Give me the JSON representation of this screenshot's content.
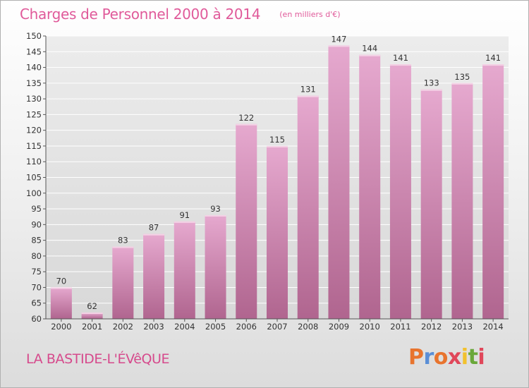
{
  "header": {
    "title": "Charges de Personnel 2000 à 2014",
    "subtitle": "(en milliers d'€)"
  },
  "footer": {
    "commune": "LA BASTIDE-L'ÉVêQUE",
    "logo": "Proxiti"
  },
  "colors": {
    "bar_top": "#e6a9cf",
    "bar_bottom": "#b0658f",
    "title": "#e05a9a",
    "logo_letters": [
      "#e8742e",
      "#5a8ed6",
      "#e8742e",
      "#e0475a",
      "#f2c12e",
      "#6aa83a",
      "#e0475a"
    ]
  },
  "chart_data": {
    "type": "bar",
    "title": "Charges de Personnel 2000 à 2014",
    "subtitle": "(en milliers d'€)",
    "categories": [
      "2000",
      "2001",
      "2002",
      "2003",
      "2004",
      "2005",
      "2006",
      "2007",
      "2008",
      "2009",
      "2010",
      "2011",
      "2012",
      "2013",
      "2014"
    ],
    "values": [
      70,
      62,
      83,
      87,
      91,
      93,
      122,
      115,
      131,
      147,
      144,
      141,
      133,
      135,
      141
    ],
    "ylim": [
      60,
      150
    ],
    "yticks": [
      60,
      65,
      70,
      75,
      80,
      85,
      90,
      95,
      100,
      105,
      110,
      115,
      120,
      125,
      130,
      135,
      140,
      145,
      150
    ],
    "grid": true,
    "legend": "none"
  }
}
